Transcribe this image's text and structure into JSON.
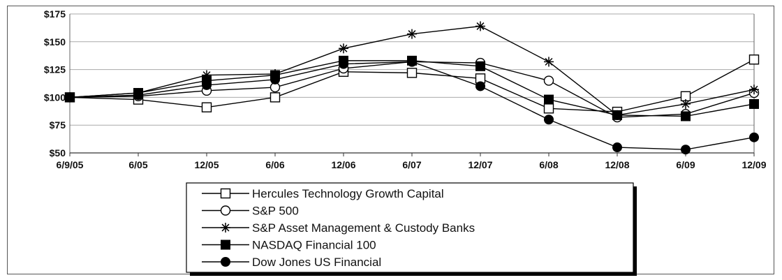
{
  "chart_data": {
    "type": "line",
    "title": "",
    "xlabel": "",
    "ylabel": "",
    "categories": [
      "6/9/05",
      "6/05",
      "12/05",
      "6/06",
      "12/06",
      "6/07",
      "12/07",
      "6/08",
      "12/08",
      "6/09",
      "12/09"
    ],
    "y_ticks": [
      "$50",
      "$75",
      "$100",
      "$125",
      "$150",
      "$175"
    ],
    "y_tick_values": [
      50,
      75,
      100,
      125,
      150,
      175
    ],
    "ylim": [
      50,
      175
    ],
    "grid": "horizontal",
    "legend_placement": "bottom-center",
    "series": [
      {
        "name": "Hercules Technology Growth Capital",
        "marker": "open-square",
        "values": [
          100,
          98,
          91,
          100,
          123,
          122,
          117,
          90,
          87,
          101,
          134
        ]
      },
      {
        "name": "S&P 500",
        "marker": "open-circle",
        "values": [
          100,
          101,
          106,
          109,
          126,
          132,
          131,
          115,
          82,
          85,
          104
        ]
      },
      {
        "name": "S&P Asset Management & Custody Banks",
        "marker": "asterisk",
        "values": [
          100,
          104,
          120,
          121,
          144,
          157,
          164,
          132,
          84,
          94,
          107
        ]
      },
      {
        "name": "NASDAQ Financial 100",
        "marker": "filled-square",
        "values": [
          100,
          104,
          115,
          120,
          133,
          133,
          128,
          98,
          84,
          83,
          94
        ]
      },
      {
        "name": "Dow Jones US Financial",
        "marker": "filled-circle",
        "values": [
          100,
          102,
          111,
          116,
          130,
          132,
          110,
          80,
          55,
          53,
          64
        ]
      }
    ]
  },
  "colors": {
    "line": "#000000",
    "grid": "#aaaaaa",
    "marker_fill": "#ffffff"
  }
}
